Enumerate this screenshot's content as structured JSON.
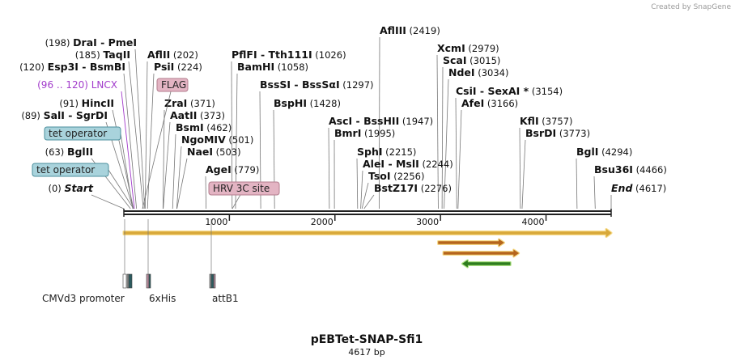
{
  "credit": "Created by SnapGene",
  "plasmid": {
    "name": "pEBTet-SNAP-Sfi1",
    "length_bp": 4617,
    "length_label": "4617 bp"
  },
  "ruler": [
    {
      "bp": 1000,
      "label": "1000"
    },
    {
      "bp": 2000,
      "label": "2000"
    },
    {
      "bp": 3000,
      "label": "3000"
    },
    {
      "bp": 4000,
      "label": "4000"
    }
  ],
  "sites": [
    {
      "names": [
        "Start"
      ],
      "pos": "(0)",
      "bp": 0,
      "italic": true,
      "side": "left"
    },
    {
      "names": [
        "BglII"
      ],
      "pos": "(63)",
      "bp": 63,
      "side": "left"
    },
    {
      "names": [
        "SalI",
        "SgrDI"
      ],
      "pos": "(89)",
      "bp": 89,
      "side": "left"
    },
    {
      "names": [
        "HincII"
      ],
      "pos": "(91)",
      "bp": 91,
      "side": "left"
    },
    {
      "names": [
        "Esp3I",
        "BsmBI"
      ],
      "pos": "(120)",
      "bp": 120,
      "side": "left"
    },
    {
      "names": [
        "TaqII"
      ],
      "pos": "(185)",
      "bp": 185,
      "side": "left"
    },
    {
      "names": [
        "DraI",
        "PmeI"
      ],
      "pos": "(198)",
      "bp": 198,
      "side": "left"
    },
    {
      "names": [
        "AflII"
      ],
      "pos": "(202)",
      "bp": 202,
      "side": "right"
    },
    {
      "names": [
        "PsiI"
      ],
      "pos": "(224)",
      "bp": 224,
      "side": "right"
    },
    {
      "names": [
        "ZraI"
      ],
      "pos": "(371)",
      "bp": 371,
      "side": "right"
    },
    {
      "names": [
        "AatII"
      ],
      "pos": "(373)",
      "bp": 373,
      "side": "right"
    },
    {
      "names": [
        "BsmI"
      ],
      "pos": "(462)",
      "bp": 462,
      "side": "right"
    },
    {
      "names": [
        "NgoMIV"
      ],
      "pos": "(501)",
      "bp": 501,
      "side": "right"
    },
    {
      "names": [
        "NaeI"
      ],
      "pos": "(503)",
      "bp": 503,
      "side": "right"
    },
    {
      "names": [
        "AgeI"
      ],
      "pos": "(779)",
      "bp": 779,
      "side": "right"
    },
    {
      "names": [
        "PflFI",
        "Tth111I"
      ],
      "pos": "(1026)",
      "bp": 1026,
      "side": "right"
    },
    {
      "names": [
        "BamHI"
      ],
      "pos": "(1058)",
      "bp": 1058,
      "side": "right"
    },
    {
      "names": [
        "BssSI",
        "BssSαI"
      ],
      "pos": "(1297)",
      "bp": 1297,
      "side": "right"
    },
    {
      "names": [
        "BspHI"
      ],
      "pos": "(1428)",
      "bp": 1428,
      "side": "right"
    },
    {
      "names": [
        "AscI",
        "BssHII"
      ],
      "pos": "(1947)",
      "bp": 1947,
      "side": "right"
    },
    {
      "names": [
        "BmrI"
      ],
      "pos": "(1995)",
      "bp": 1995,
      "side": "right"
    },
    {
      "names": [
        "SphI"
      ],
      "pos": "(2215)",
      "bp": 2215,
      "side": "right"
    },
    {
      "names": [
        "AleI",
        "MslI"
      ],
      "pos": "(2244)",
      "bp": 2244,
      "side": "right"
    },
    {
      "names": [
        "TsoI"
      ],
      "pos": "(2256)",
      "bp": 2256,
      "side": "right"
    },
    {
      "names": [
        "BstZ17I"
      ],
      "pos": "(2276)",
      "bp": 2276,
      "side": "right"
    },
    {
      "names": [
        "AflIII"
      ],
      "pos": "(2419)",
      "bp": 2419,
      "side": "right"
    },
    {
      "names": [
        "XcmI"
      ],
      "pos": "(2979)",
      "bp": 2979,
      "side": "right"
    },
    {
      "names": [
        "ScaI"
      ],
      "pos": "(3015)",
      "bp": 3015,
      "side": "right"
    },
    {
      "names": [
        "NdeI"
      ],
      "pos": "(3034)",
      "bp": 3034,
      "side": "right"
    },
    {
      "names": [
        "CsiI",
        "SexAI *"
      ],
      "pos": "(3154)",
      "bp": 3154,
      "side": "right"
    },
    {
      "names": [
        "AfeI"
      ],
      "pos": "(3166)",
      "bp": 3166,
      "side": "right"
    },
    {
      "names": [
        "KflI"
      ],
      "pos": "(3757)",
      "bp": 3757,
      "side": "right"
    },
    {
      "names": [
        "BsrDI"
      ],
      "pos": "(3773)",
      "bp": 3773,
      "side": "right"
    },
    {
      "names": [
        "BglI"
      ],
      "pos": "(4294)",
      "bp": 4294,
      "side": "right"
    },
    {
      "names": [
        "Bsu36I"
      ],
      "pos": "(4466)",
      "bp": 4466,
      "side": "right"
    },
    {
      "names": [
        "End"
      ],
      "pos": "(4617)",
      "bp": 4617,
      "italic": true,
      "side": "right"
    }
  ],
  "feature_labels": [
    {
      "text": "(96 .. 120)  LNCX",
      "bp": 108,
      "kind": "lncx"
    },
    {
      "text": "tet operator",
      "bp": 88,
      "kind": "teal"
    },
    {
      "text": "tet operator",
      "bp": 104,
      "kind": "teal"
    },
    {
      "text": "FLAG",
      "bp": 224,
      "kind": "pink"
    },
    {
      "text": "HRV 3C site",
      "bp": 1050,
      "kind": "pink"
    }
  ],
  "features_below": [
    {
      "label": "CMVd3 promoter",
      "start_bp": 0,
      "end_bp": 90
    },
    {
      "label": "6xHis",
      "start_bp": 215,
      "end_bp": 250
    },
    {
      "label": "attB1",
      "start_bp": 820,
      "end_bp": 860
    }
  ],
  "arrows": [
    {
      "start_bp": 0,
      "end_bp": 4617,
      "dir": "forward",
      "color": "#f6d77b",
      "line": "#d8a83a"
    },
    {
      "start_bp": 2980,
      "end_bp": 3600,
      "dir": "forward",
      "color": "#f6d77b",
      "line": "#b5651d"
    },
    {
      "start_bp": 3030,
      "end_bp": 3740,
      "dir": "forward",
      "color": "#f6d77b",
      "line": "#b5651d"
    },
    {
      "start_bp": 3210,
      "end_bp": 3660,
      "dir": "reverse",
      "color": "#a8e07a",
      "line": "#2e7d1e"
    }
  ]
}
